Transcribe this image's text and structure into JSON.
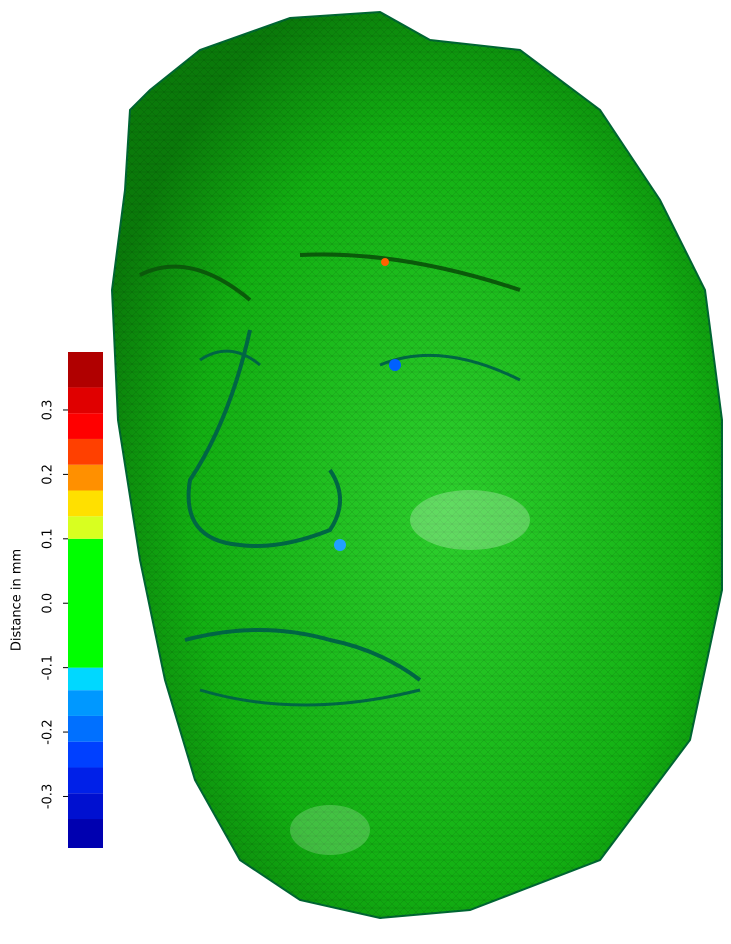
{
  "chart_data": {
    "type": "colorbar",
    "ylabel": "Distance in mm",
    "ylim": [
      -0.38,
      0.39
    ],
    "yticks": [
      -0.3,
      -0.2,
      -0.1,
      {
        "value": 0,
        "label": "0.0"
      },
      0.1,
      0.2,
      0.3
    ],
    "bins": [
      -0.38,
      -0.335,
      -0.295,
      -0.255,
      -0.215,
      -0.175,
      -0.135,
      -0.1,
      0.1,
      0.135,
      0.175,
      0.215,
      0.255,
      0.295,
      0.335,
      0.39
    ],
    "colors": [
      "#0000b0",
      "#0010d0",
      "#0020e8",
      "#0040ff",
      "#0070ff",
      "#0098ff",
      "#00d8ff",
      "#00ff00",
      "#d8ff20",
      "#ffe000",
      "#ff9000",
      "#ff4000",
      "#ff0000",
      "#e00000",
      "#b00000"
    ]
  }
}
